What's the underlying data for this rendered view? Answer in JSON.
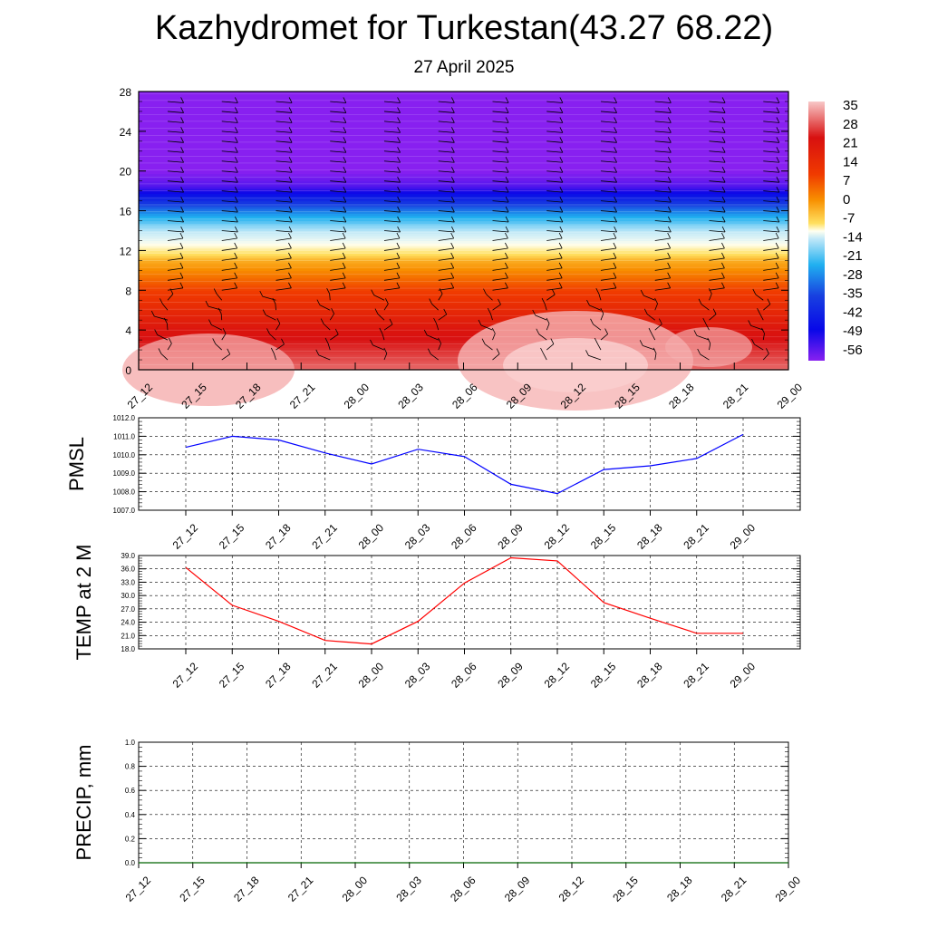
{
  "header": {
    "title": "Kazhydromet for Turkestan(43.27 68.22)",
    "subtitle": "27 April 2025"
  },
  "chart_data": [
    {
      "type": "heatmap",
      "title": "",
      "x_tick_labels": [
        "27_12",
        "27_15",
        "27_18",
        "27_21",
        "28_00",
        "28_03",
        "28_06",
        "28_09",
        "28_12",
        "28_15",
        "28_18",
        "28_21",
        "29_00"
      ],
      "y_ticks": [
        0,
        4,
        8,
        12,
        16,
        20,
        24,
        28
      ],
      "ylim": [
        0,
        28
      ],
      "colorbar": {
        "labels": [
          "35",
          "28",
          "21",
          "14",
          "7",
          "0",
          "-7",
          "-14",
          "-21",
          "-28",
          "-35",
          "-42",
          "-49",
          "-56"
        ],
        "range": [
          -60,
          38
        ]
      },
      "temperature_by_level": [
        {
          "level": 0,
          "value": 33
        },
        {
          "level": 4,
          "value": 27
        },
        {
          "level": 8,
          "value": 18
        },
        {
          "level": 11,
          "value": 5
        },
        {
          "level": 13,
          "value": -14
        },
        {
          "level": 16,
          "value": -35
        },
        {
          "level": 18.5,
          "value": -56
        },
        {
          "level": 20,
          "value": -60
        },
        {
          "level": 28,
          "value": -60
        }
      ],
      "note_wind_barbs": true,
      "grid": false
    },
    {
      "type": "line",
      "ylabel": "PMSL",
      "x": [
        "27_12",
        "27_15",
        "27_18",
        "27_21",
        "28_00",
        "28_03",
        "28_06",
        "28_09",
        "28_12",
        "28_15",
        "28_18",
        "28_21",
        "29_00"
      ],
      "values": [
        1010.4,
        1011.0,
        1010.8,
        1010.1,
        1009.5,
        1010.3,
        1009.9,
        1008.4,
        1007.9,
        1009.2,
        1009.4,
        1009.8,
        1011.1
      ],
      "ylim": [
        1007.0,
        1012.0
      ],
      "y_tick_labels": [
        "1007.0",
        "1008.0",
        "1009.0",
        "1010.0",
        "1011.0",
        "1012.0"
      ],
      "color": "#0000ff",
      "grid": true
    },
    {
      "type": "line",
      "ylabel": "TEMP at 2 M",
      "x": [
        "27_12",
        "27_15",
        "27_18",
        "27_21",
        "28_00",
        "28_03",
        "28_06",
        "28_09",
        "28_12",
        "28_15",
        "28_18",
        "28_21",
        "29_00"
      ],
      "values": [
        36.3,
        27.8,
        24.2,
        19.9,
        19.1,
        24.2,
        32.8,
        38.5,
        37.8,
        28.4,
        24.9,
        21.5,
        21.5
      ],
      "ylim": [
        18.0,
        39.0
      ],
      "y_tick_labels": [
        "18.0",
        "21.0",
        "24.0",
        "27.0",
        "30.0",
        "33.0",
        "36.0",
        "39.0"
      ],
      "color": "#ff0000",
      "grid": true
    },
    {
      "type": "line",
      "ylabel": "PRECIP, mm",
      "x_tick_labels": [
        "27_12",
        "27_15",
        "27_18",
        "27_21",
        "28_00",
        "28_03",
        "28_06",
        "28_09",
        "28_12",
        "28_15",
        "28_18",
        "28_21",
        "29_00"
      ],
      "values": [
        0,
        0,
        0,
        0,
        0,
        0,
        0,
        0,
        0,
        0,
        0,
        0,
        0
      ],
      "ylim": [
        0.0,
        1.0
      ],
      "y_tick_labels": [
        "0.0",
        "0.2",
        "0.4",
        "0.6",
        "0.8",
        "1.0"
      ],
      "color": "#006400",
      "grid": true
    }
  ]
}
